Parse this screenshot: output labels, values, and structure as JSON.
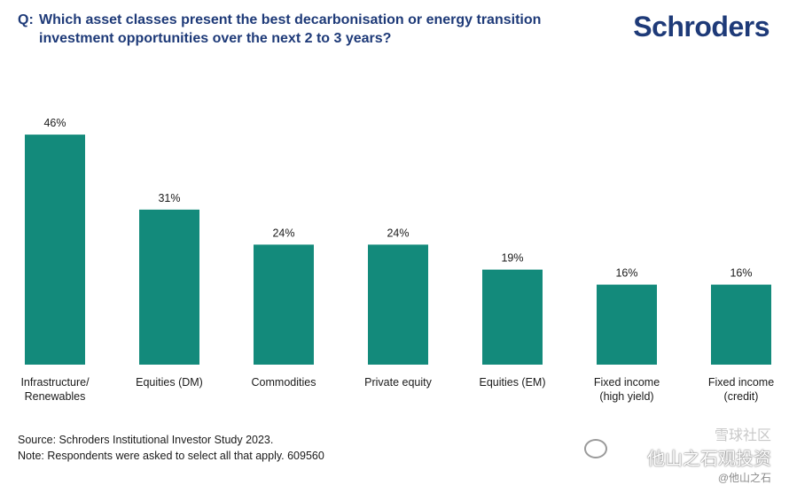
{
  "header": {
    "q_prefix": "Q:",
    "question_line1": "Which asset classes present the best decarbonisation or energy transition",
    "question_line2": "investment opportunities over the next 2 to 3 years?",
    "logo": "Schroders"
  },
  "chart_data": {
    "type": "bar",
    "categories": [
      [
        "Infrastructure/",
        "Renewables"
      ],
      [
        "Equities (DM)"
      ],
      [
        "Commodities"
      ],
      [
        "Private equity"
      ],
      [
        "Equities (EM)"
      ],
      [
        "Fixed income",
        "(high yield)"
      ],
      [
        "Fixed income",
        "(credit)"
      ]
    ],
    "values": [
      46,
      31,
      24,
      24,
      19,
      16,
      16
    ],
    "data_labels": [
      "46%",
      "31%",
      "24%",
      "24%",
      "19%",
      "16%",
      "16%"
    ],
    "ylim": [
      0,
      50
    ],
    "grid": false,
    "bar_color": "#138a7b"
  },
  "footer": {
    "source": "Source: Schroders Institutional Investor Study 2023.",
    "note": "Note: Respondents were asked to select all that apply. 609560"
  },
  "watermark": {
    "top": "雪球社区",
    "main": "他山之石观投资",
    "handle": "@他山之石"
  },
  "colors": {
    "navy": "#1e3a78",
    "teal": "#138a7b"
  }
}
